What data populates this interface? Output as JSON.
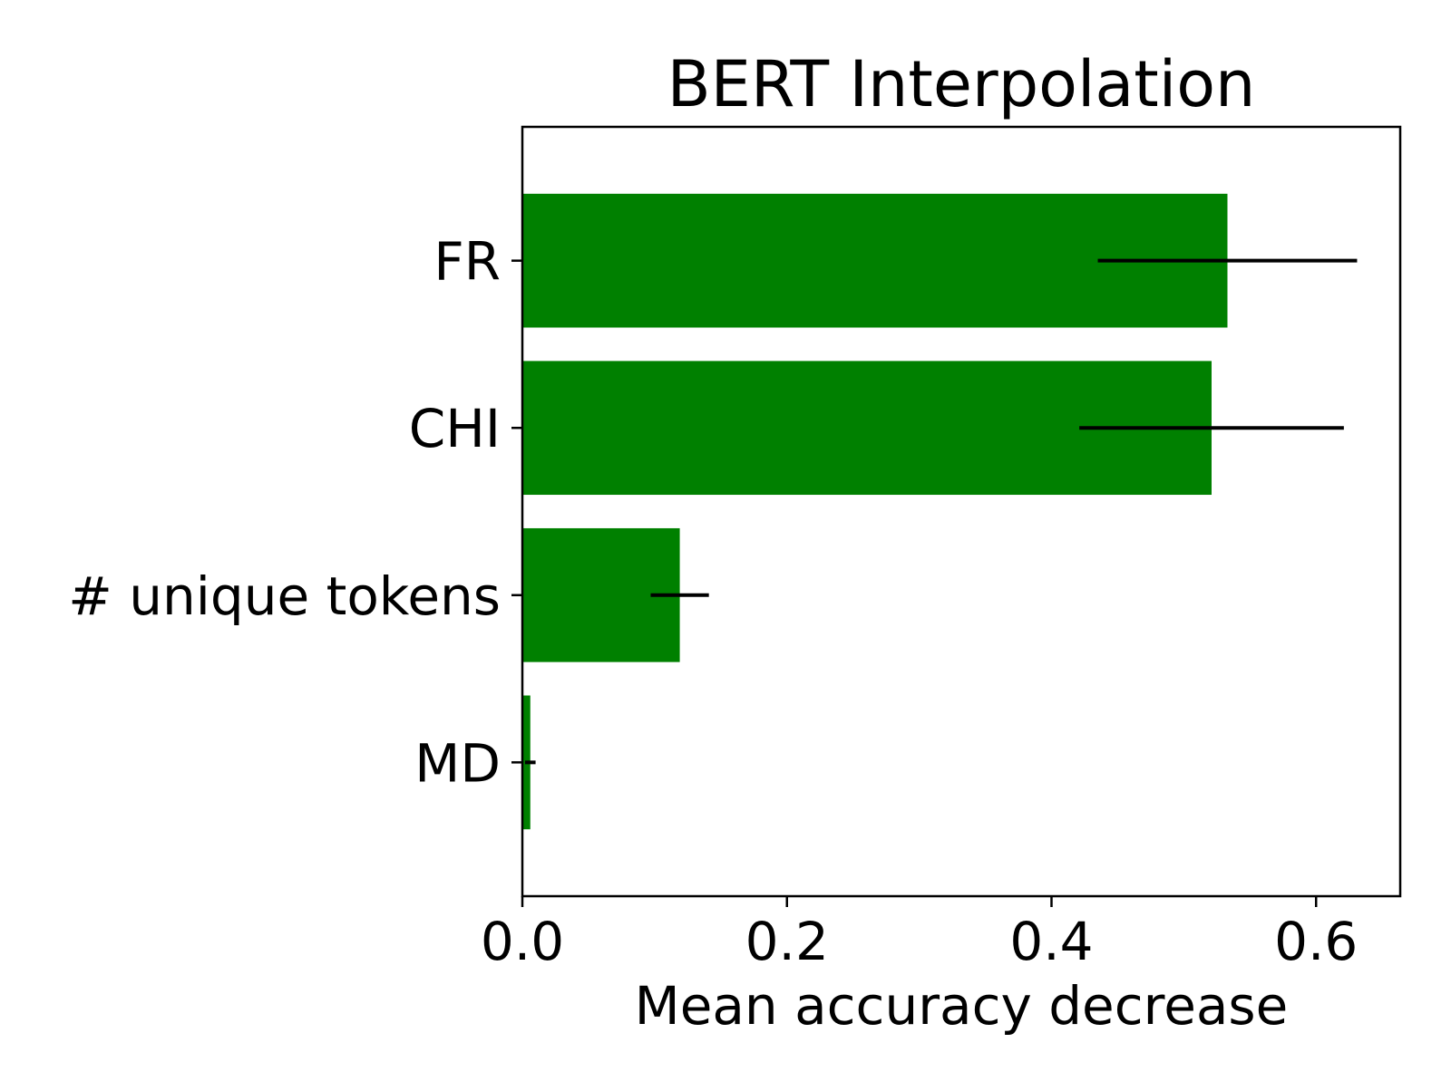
{
  "chart_data": {
    "type": "bar",
    "orientation": "horizontal",
    "title": "BERT Interpolation",
    "xlabel": "Mean accuracy decrease",
    "ylabel": "",
    "categories": [
      "FR",
      "CHI",
      "# unique tokens",
      "MD"
    ],
    "values": [
      0.533,
      0.521,
      0.119,
      0.006
    ],
    "errors": [
      0.098,
      0.1,
      0.022,
      0.004
    ],
    "xlim": [
      0,
      0.6636
    ],
    "xticks": [
      0.0,
      0.2,
      0.4,
      0.6
    ],
    "xtick_labels": [
      "0.0",
      "0.2",
      "0.4",
      "0.6"
    ],
    "bar_color": "#008000",
    "errorbar_color": "#000000",
    "grid": false,
    "legend": "none"
  }
}
